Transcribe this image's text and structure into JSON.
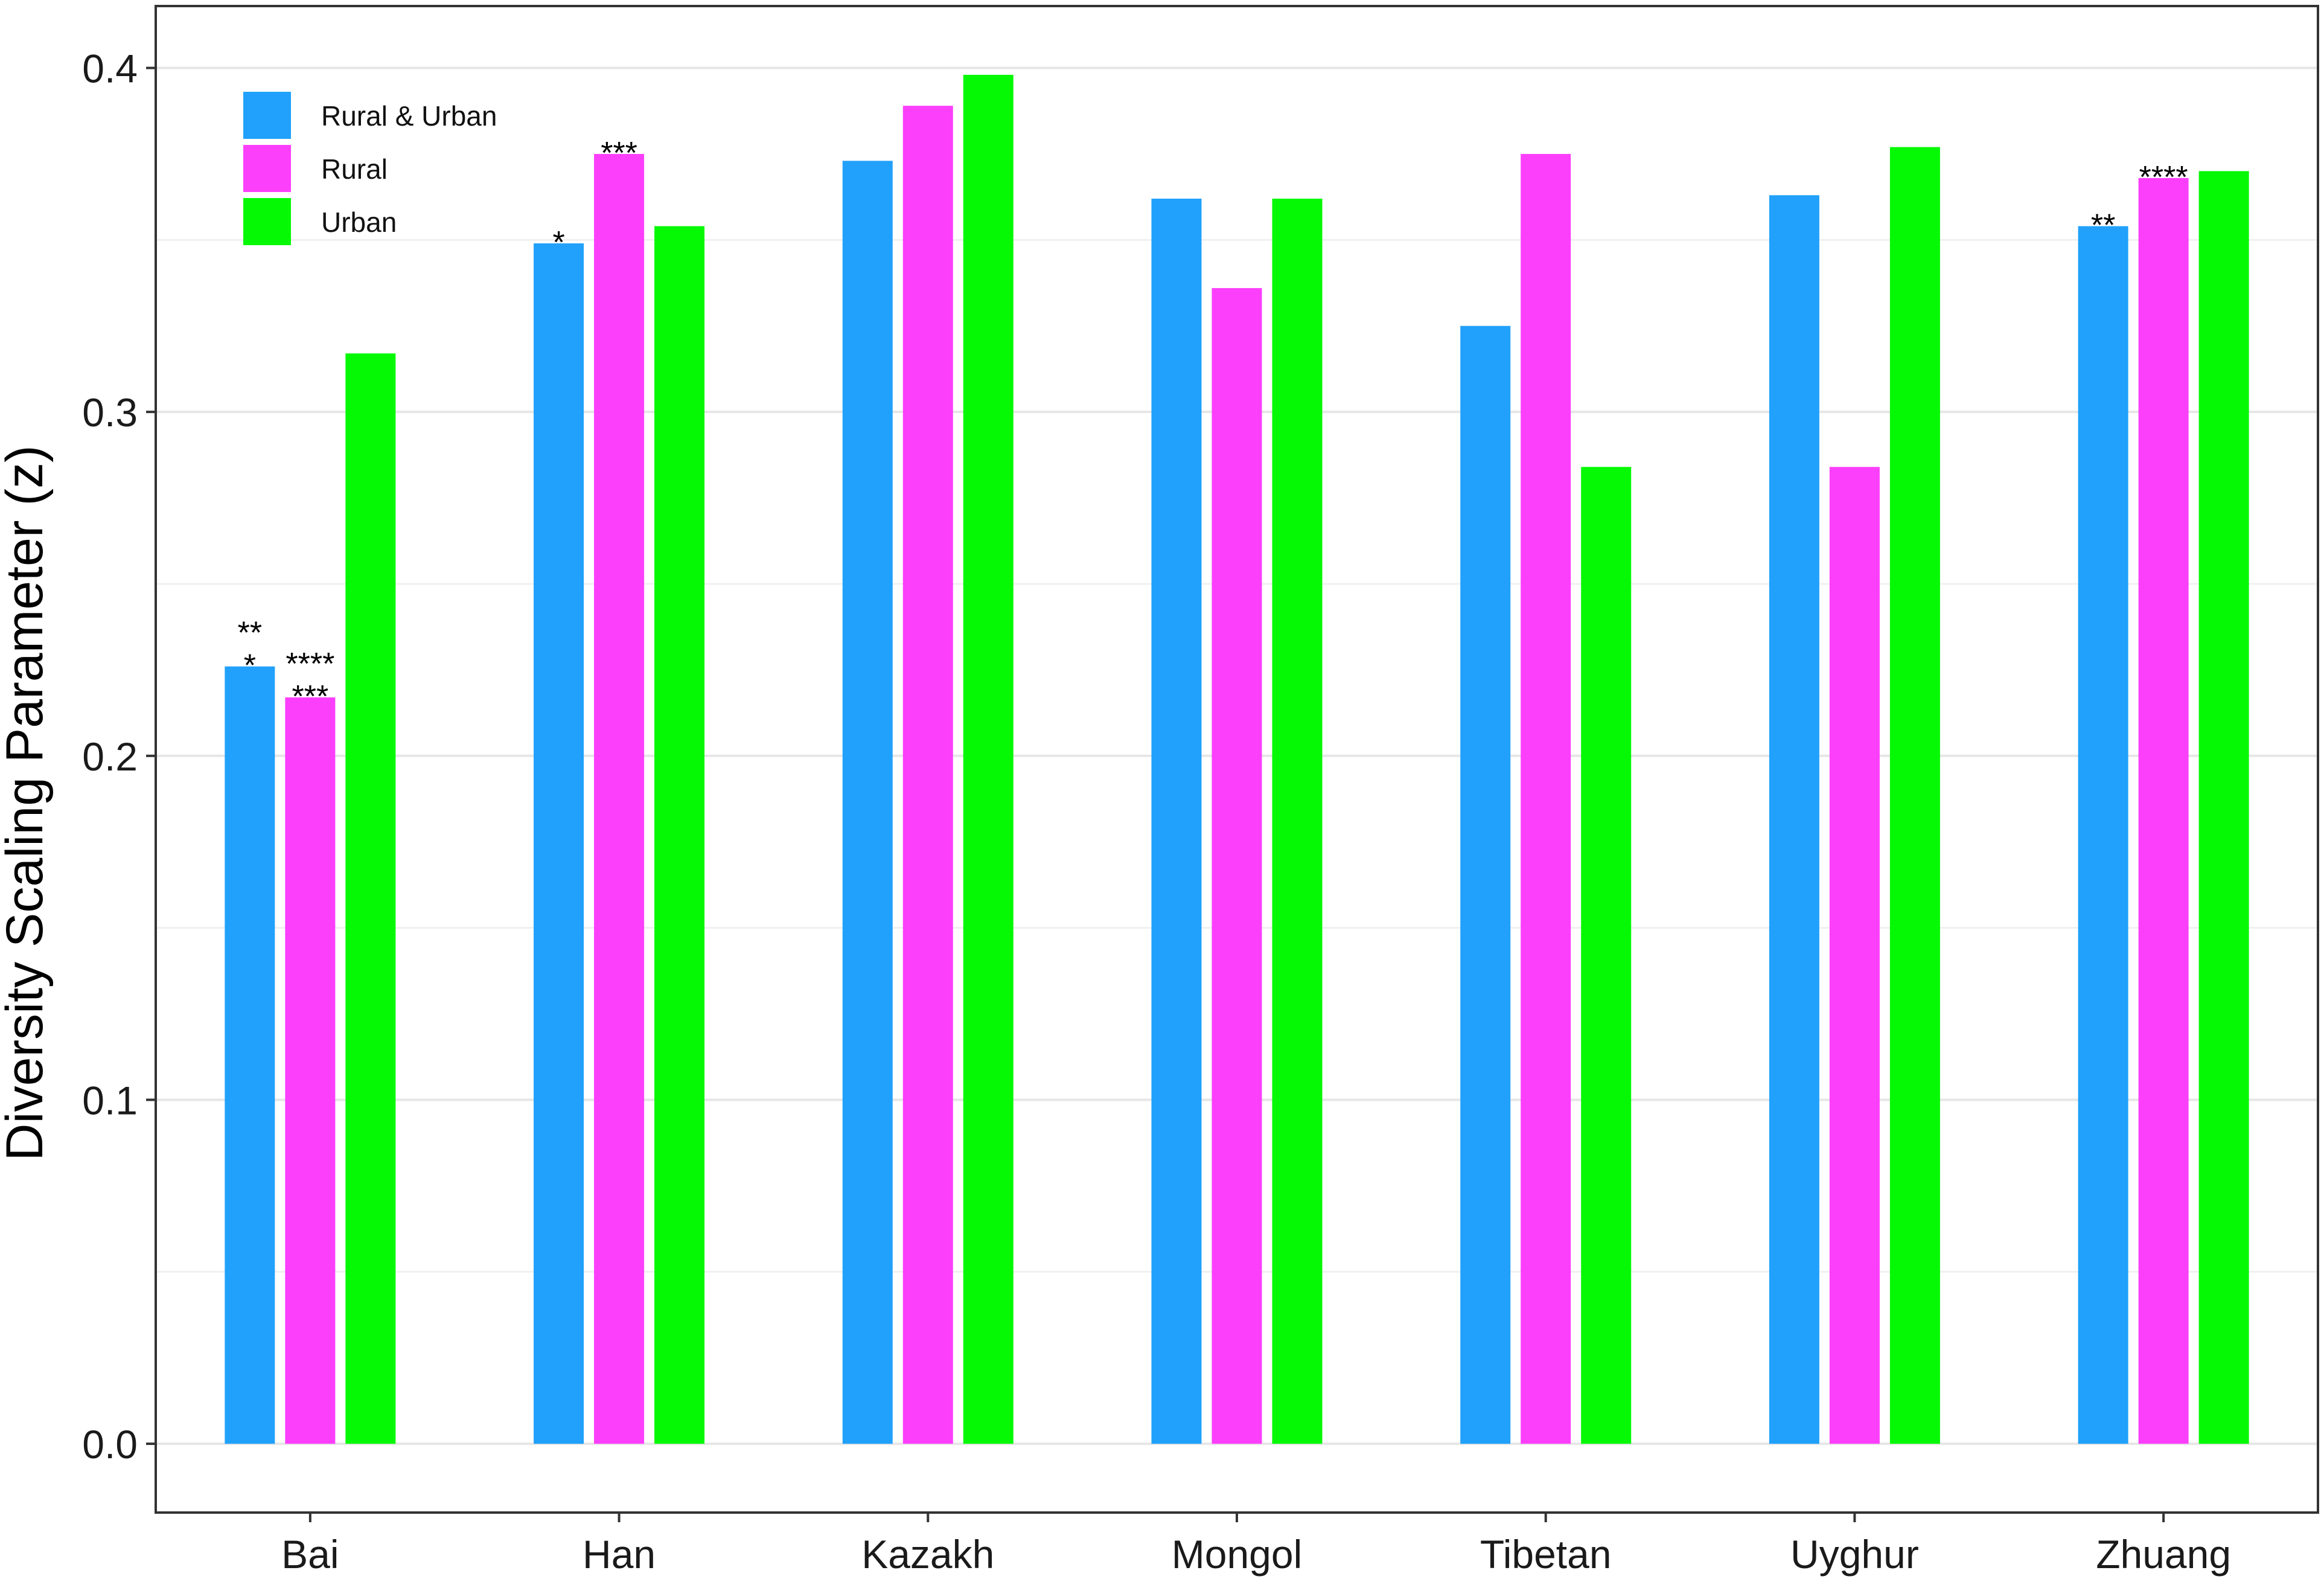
{
  "chart_data": {
    "type": "bar",
    "title": "",
    "xlabel": "",
    "ylabel": "Diversity Scaling Parameter (z)",
    "categories": [
      "Bai",
      "Han",
      "Kazakh",
      "Mongol",
      "Tibetan",
      "Uyghur",
      "Zhuang"
    ],
    "series": [
      {
        "name": "Rural & Urban",
        "color": "#21a1fb",
        "values": [
          0.226,
          0.349,
          0.373,
          0.362,
          0.325,
          0.363,
          0.354
        ]
      },
      {
        "name": "Rural",
        "color": "#fb3ffb",
        "values": [
          0.217,
          0.375,
          0.389,
          0.336,
          0.375,
          0.284,
          0.368
        ]
      },
      {
        "name": "Urban",
        "color": "#05f905",
        "values": [
          0.317,
          0.354,
          0.398,
          0.362,
          0.284,
          0.377,
          0.37
        ]
      }
    ],
    "ylim": [
      -0.02,
      0.418
    ],
    "yticks": [
      0.0,
      0.1,
      0.2,
      0.3,
      0.4
    ],
    "ytick_labels": [
      "0.0",
      "0.1",
      "0.2",
      "0.3",
      "0.4"
    ],
    "grid": "horizontal major and minor",
    "legend_position": "top-left inside",
    "annotations": [
      {
        "category": "Bai",
        "series": "Rural & Urban",
        "lines": [
          "**",
          "*"
        ]
      },
      {
        "category": "Bai",
        "series": "Rural",
        "lines": [
          "****",
          "***"
        ]
      },
      {
        "category": "Han",
        "series": "Rural & Urban",
        "lines": [
          "*"
        ]
      },
      {
        "category": "Han",
        "series": "Rural",
        "lines": [
          "***"
        ]
      },
      {
        "category": "Zhuang",
        "series": "Rural & Urban",
        "lines": [
          "**"
        ]
      },
      {
        "category": "Zhuang",
        "series": "Rural",
        "lines": [
          "****"
        ]
      }
    ]
  }
}
